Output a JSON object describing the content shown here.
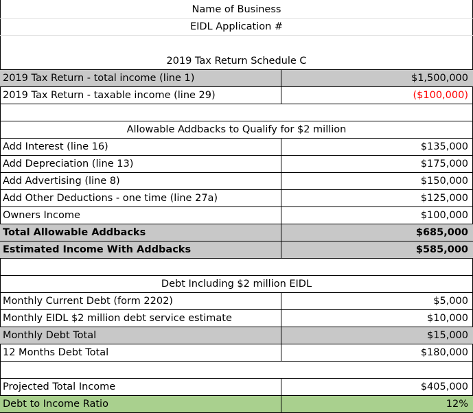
{
  "header": {
    "business_name": "Name of Business",
    "application": "EIDL Application #"
  },
  "schedule_c": {
    "title": "2019 Tax Return Schedule C",
    "rows": [
      {
        "label": "2019 Tax Return - total income (line 1)",
        "value": "$1,500,000"
      },
      {
        "label": "2019 Tax Return - taxable income (line 29)",
        "value": "($100,000)"
      }
    ]
  },
  "addbacks": {
    "title": "Allowable Addbacks to Qualify for $2 million",
    "rows": [
      {
        "label": "Add Interest (line 16)",
        "value": "$135,000"
      },
      {
        "label": "Add Depreciation (line 13)",
        "value": "$175,000"
      },
      {
        "label": "Add Advertising (line 8)",
        "value": "$150,000"
      },
      {
        "label": "Add Other Deductions - one time (line 27a)",
        "value": "$125,000"
      },
      {
        "label": "Owners Income",
        "value": "$100,000"
      }
    ],
    "total": {
      "label": "Total Allowable Addbacks",
      "value": "$685,000"
    },
    "estimated": {
      "label": "Estimated Income With Addbacks",
      "value": "$585,000"
    }
  },
  "debt": {
    "title": "Debt Including $2 million EIDL",
    "rows": [
      {
        "label": "Monthly Current Debt (form 2202)",
        "value": "$5,000"
      },
      {
        "label": "Monthly EIDL $2 million debt service estimate",
        "value": "$10,000"
      }
    ],
    "monthly_total": {
      "label": "Monthly Debt Total",
      "value": "$15,000"
    },
    "annual_total": {
      "label": "12 Months Debt Total",
      "value": "$180,000"
    }
  },
  "summary": {
    "projected": {
      "label": "Projected Total Income",
      "value": "$405,000"
    },
    "ratio": {
      "label": "Debt to Income Ratio",
      "value": "12%"
    }
  },
  "colors": {
    "gray_fill": "#c8c8c8",
    "green_fill": "#a9d08e",
    "negative_text": "#ff0000"
  }
}
